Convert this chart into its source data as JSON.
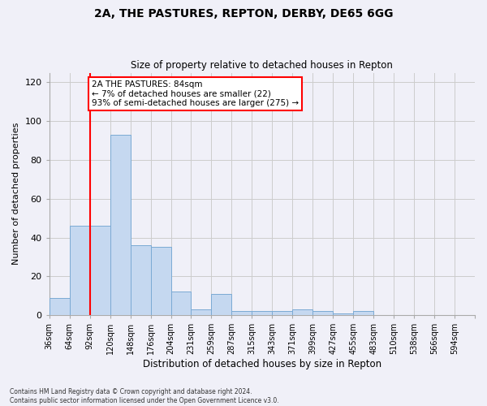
{
  "title1": "2A, THE PASTURES, REPTON, DERBY, DE65 6GG",
  "title2": "Size of property relative to detached houses in Repton",
  "xlabel": "Distribution of detached houses by size in Repton",
  "ylabel": "Number of detached properties",
  "footnote": "Contains HM Land Registry data © Crown copyright and database right 2024.\nContains public sector information licensed under the Open Government Licence v3.0.",
  "bin_labels": [
    "36sqm",
    "64sqm",
    "92sqm",
    "120sqm",
    "148sqm",
    "176sqm",
    "204sqm",
    "231sqm",
    "259sqm",
    "287sqm",
    "315sqm",
    "343sqm",
    "371sqm",
    "399sqm",
    "427sqm",
    "455sqm",
    "483sqm",
    "510sqm",
    "538sqm",
    "566sqm",
    "594sqm"
  ],
  "bar_values": [
    9,
    46,
    46,
    93,
    36,
    35,
    12,
    3,
    11,
    2,
    2,
    2,
    3,
    2,
    1,
    2,
    0,
    0,
    0,
    0,
    0
  ],
  "bar_color": "#c5d8f0",
  "bar_edge_color": "#7baad4",
  "ylim": [
    0,
    125
  ],
  "yticks": [
    0,
    20,
    40,
    60,
    80,
    100,
    120
  ],
  "annotation_text": "2A THE PASTURES: 84sqm\n← 7% of detached houses are smaller (22)\n93% of semi-detached houses are larger (275) →",
  "annotation_box_color": "white",
  "annotation_border_color": "red",
  "red_line_color": "red",
  "background_color": "#f0f0f8",
  "grid_color": "#cccccc"
}
